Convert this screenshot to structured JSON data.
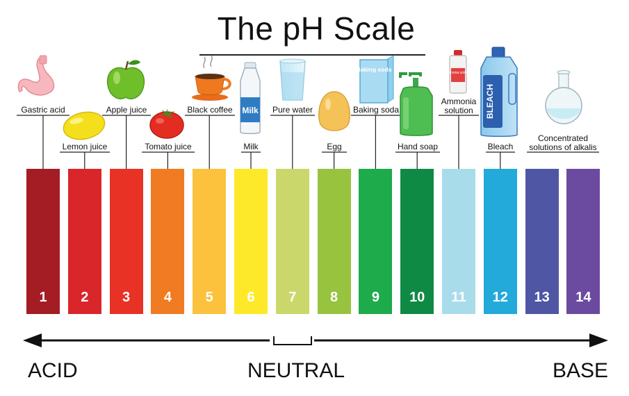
{
  "title": "The pH Scale",
  "scale": [
    {
      "value": "1",
      "label": "Gastric acid",
      "color": "#a41c24",
      "icon": "stomach-icon"
    },
    {
      "value": "2",
      "label": "Lemon juice",
      "color": "#d9262a",
      "icon": "lemon-icon"
    },
    {
      "value": "3",
      "label": "Apple juice",
      "color": "#e83225",
      "icon": "apple-icon"
    },
    {
      "value": "4",
      "label": "Tomato juice",
      "color": "#f07b22",
      "icon": "tomato-icon"
    },
    {
      "value": "5",
      "label": "Black coffee",
      "color": "#fcc23d",
      "icon": "coffee-cup-icon"
    },
    {
      "value": "6",
      "label": "Milk",
      "color": "#fde92a",
      "icon": "milk-bottle-icon"
    },
    {
      "value": "7",
      "label": "Pure water",
      "color": "#cad86b",
      "icon": "water-glass-icon"
    },
    {
      "value": "8",
      "label": "Egg",
      "color": "#98c33f",
      "icon": "egg-icon"
    },
    {
      "value": "9",
      "label": "Baking soda",
      "color": "#1dab4b",
      "icon": "baking-soda-box-icon"
    },
    {
      "value": "10",
      "label": "Hand soap",
      "color": "#0f8a45",
      "icon": "hand-soap-bottle-icon"
    },
    {
      "value": "11",
      "label": "Ammonia solution",
      "color": "#a8dcea",
      "icon": "ammonia-bottle-icon"
    },
    {
      "value": "12",
      "label": "Bleach",
      "color": "#23a9da",
      "icon": "bleach-bottle-icon"
    },
    {
      "value": "13",
      "label": "Concentrated solutions of alkalis",
      "color": "#4f57a4",
      "icon": "flask-icon"
    },
    {
      "value": "14",
      "label": "",
      "color": "#6b4b9f",
      "icon": ""
    }
  ],
  "icon_text": {
    "milk": "Milk",
    "baking_soda": "Baking soda",
    "ammonia": "Ammonia solution",
    "bleach": "BLEACH"
  },
  "axis": {
    "left": "ACID",
    "center": "NEUTRAL",
    "right": "BASE"
  }
}
